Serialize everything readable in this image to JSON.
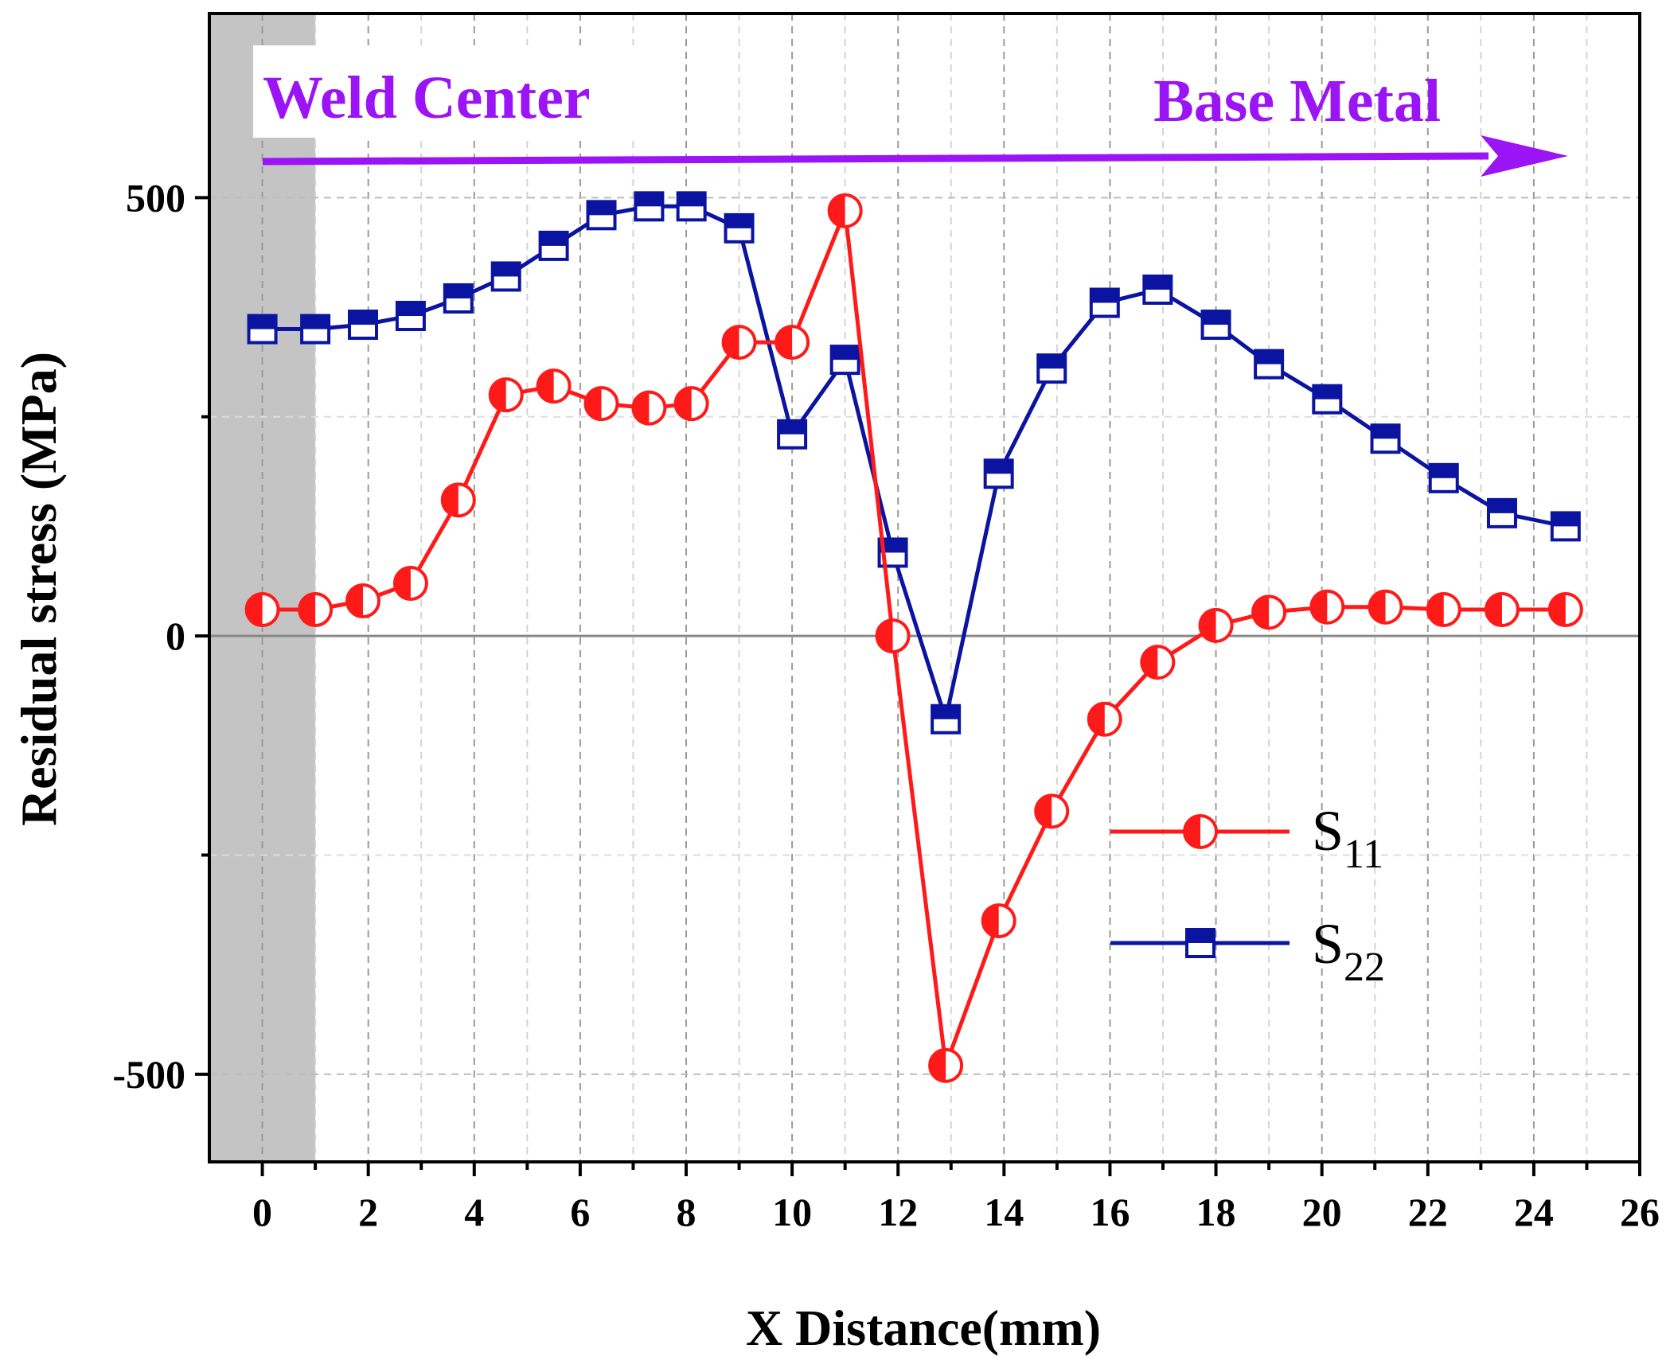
{
  "chart_data": {
    "type": "line",
    "title": "",
    "xlabel": "X Distance(mm)",
    "ylabel": "Residual stress (MPa)",
    "xlim": [
      -1,
      26
    ],
    "ylim": [
      -600,
      710
    ],
    "xticks": [
      0,
      2,
      4,
      6,
      8,
      10,
      12,
      14,
      16,
      18,
      20,
      22,
      24,
      26
    ],
    "yticks": [
      -500,
      0,
      500
    ],
    "grid": true,
    "shaded_region": {
      "from": -1,
      "to": 1,
      "color": "#c4c4c4"
    },
    "annotations": {
      "left": "Weld Center",
      "right": "Base Metal",
      "color": "#9b14f5"
    },
    "colors": {
      "s11": "#ff1a1a",
      "s22": "#0a14a0"
    },
    "legend": {
      "position": "right"
    },
    "series": [
      {
        "name": "S",
        "subscript": "11",
        "marker": "half-filled-circle",
        "x": [
          0,
          1,
          1.9,
          2.8,
          3.7,
          4.6,
          5.5,
          6.4,
          7.3,
          8.1,
          9.0,
          10.0,
          11.0,
          11.9,
          12.9,
          13.9,
          14.9,
          15.9,
          16.9,
          18.0,
          19.0,
          20.1,
          21.2,
          22.3,
          23.4,
          24.6
        ],
        "y": [
          30,
          30,
          40,
          60,
          155,
          275,
          285,
          265,
          260,
          265,
          335,
          335,
          485,
          0,
          -490,
          -325,
          -200,
          -95,
          -30,
          12,
          27,
          33,
          33,
          30,
          30,
          30
        ]
      },
      {
        "name": "S",
        "subscript": "22",
        "marker": "half-filled-square",
        "x": [
          0,
          1,
          1.9,
          2.8,
          3.7,
          4.6,
          5.5,
          6.4,
          7.3,
          8.1,
          9.0,
          10.0,
          11.0,
          11.9,
          12.9,
          13.9,
          14.9,
          15.9,
          16.9,
          18.0,
          19.0,
          20.1,
          21.2,
          22.3,
          23.4,
          24.6
        ],
        "y": [
          350,
          350,
          355,
          365,
          385,
          410,
          445,
          480,
          490,
          490,
          465,
          230,
          315,
          95,
          -95,
          185,
          305,
          380,
          395,
          355,
          310,
          270,
          225,
          180,
          140,
          125
        ]
      }
    ]
  }
}
